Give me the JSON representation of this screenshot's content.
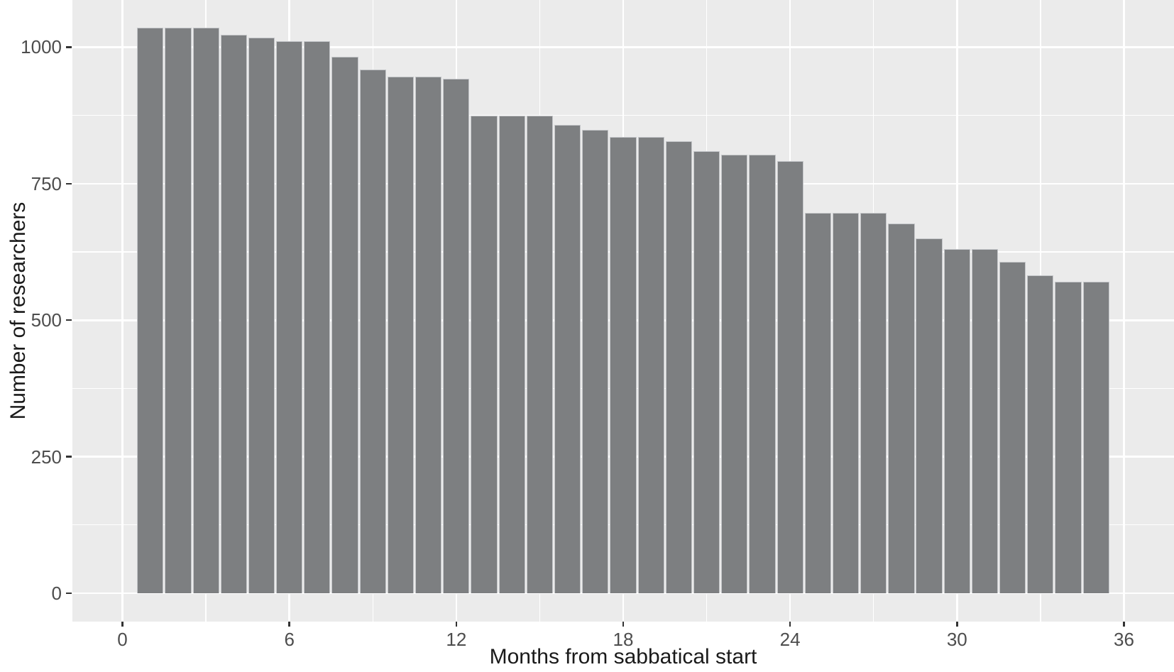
{
  "chart_data": {
    "type": "bar",
    "title": "",
    "xlabel": "Months from sabbatical start",
    "ylabel": "Number of researchers",
    "x": [
      1,
      2,
      3,
      4,
      5,
      6,
      7,
      8,
      9,
      10,
      11,
      12,
      13,
      14,
      15,
      16,
      17,
      18,
      19,
      20,
      21,
      22,
      23,
      24,
      25,
      26,
      27,
      28,
      29,
      30,
      31,
      32,
      33,
      34,
      35
    ],
    "values": [
      1036,
      1036,
      1036,
      1023,
      1018,
      1011,
      1011,
      982,
      959,
      946,
      946,
      942,
      874,
      874,
      874,
      858,
      848,
      836,
      836,
      828,
      809,
      803,
      803,
      791,
      697,
      697,
      697,
      677,
      650,
      630,
      630,
      607,
      582,
      571,
      571
    ],
    "x_ticks": [
      0,
      6,
      12,
      18,
      24,
      30,
      36
    ],
    "x_minor_ticks": [
      3,
      9,
      15,
      21,
      27,
      33
    ],
    "y_ticks": [
      0,
      250,
      500,
      750,
      1000
    ],
    "y_minor_ticks": [
      125,
      375,
      625,
      875
    ],
    "xlim": [
      -1.8,
      37.8
    ],
    "ylim": [
      -51.9,
      1086.3
    ],
    "bar_width_months": 0.95,
    "grid": "major and minor white gridlines on grey panel",
    "legend_position": "none",
    "colors": {
      "figure_bg": "#ffffff",
      "panel_bg": "#ebebeb",
      "grid": "#ffffff",
      "bar_fill": "#7d7f81",
      "bar_edge": "#c4c6c9",
      "tick_mark": "#333333",
      "tick_label": "#4d4d4d",
      "axis_title": "#1a1a1a"
    }
  }
}
